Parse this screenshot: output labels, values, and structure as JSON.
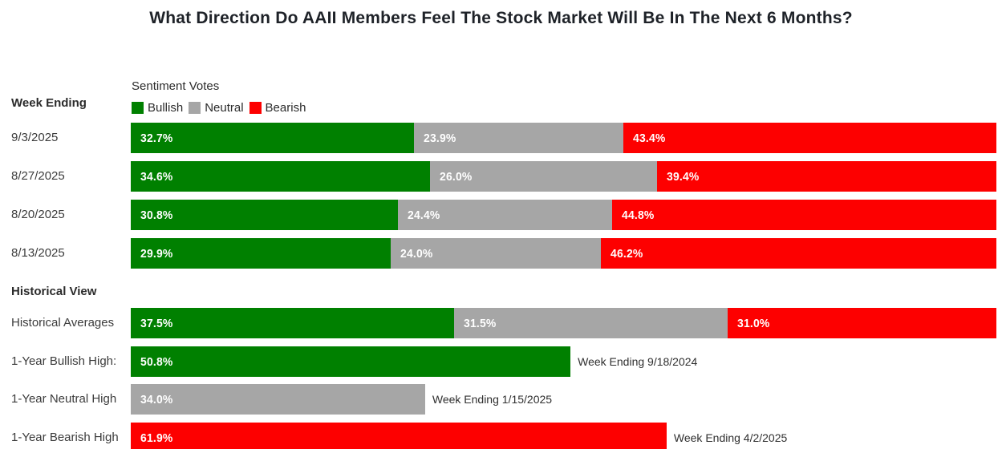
{
  "title": "What Direction Do AAII Members Feel The Stock Market Will Be In The Next 6 Months?",
  "header": {
    "week_ending_label": "Week Ending",
    "legend_title": "Sentiment Votes"
  },
  "colors": {
    "bullish": "#008000",
    "neutral": "#a6a6a6",
    "bearish": "#fd0000"
  },
  "chart_data": {
    "type": "bar",
    "orientation": "horizontal",
    "stacked": true,
    "unit": "%",
    "value_range": [
      0,
      100
    ],
    "legend_position": "top",
    "legend": [
      {
        "name": "Bullish",
        "color": "#008000"
      },
      {
        "name": "Neutral",
        "color": "#a6a6a6"
      },
      {
        "name": "Bearish",
        "color": "#fd0000"
      }
    ],
    "weekly_rows": [
      {
        "label": "9/3/2025",
        "values": {
          "bullish": 32.7,
          "neutral": 23.9,
          "bearish": 43.4
        }
      },
      {
        "label": "8/27/2025",
        "values": {
          "bullish": 34.6,
          "neutral": 26.0,
          "bearish": 39.4
        }
      },
      {
        "label": "8/20/2025",
        "values": {
          "bullish": 30.8,
          "neutral": 24.4,
          "bearish": 44.8
        }
      },
      {
        "label": "8/13/2025",
        "values": {
          "bullish": 29.9,
          "neutral": 24.0,
          "bearish": 46.2
        }
      }
    ],
    "historical_section_label": "Historical View",
    "historical_averages": {
      "label": "Historical Averages",
      "values": {
        "bullish": 37.5,
        "neutral": 31.5,
        "bearish": 31.0
      }
    },
    "one_year_highs": [
      {
        "label": "1-Year Bullish High:",
        "series": "bullish",
        "value": 50.8,
        "annotation": "Week Ending 9/18/2024"
      },
      {
        "label": "1-Year Neutral High",
        "series": "neutral",
        "value": 34.0,
        "annotation": "Week Ending 1/15/2025"
      },
      {
        "label": "1-Year Bearish High",
        "series": "bearish",
        "value": 61.9,
        "annotation": "Week Ending 4/2/2025"
      }
    ]
  }
}
